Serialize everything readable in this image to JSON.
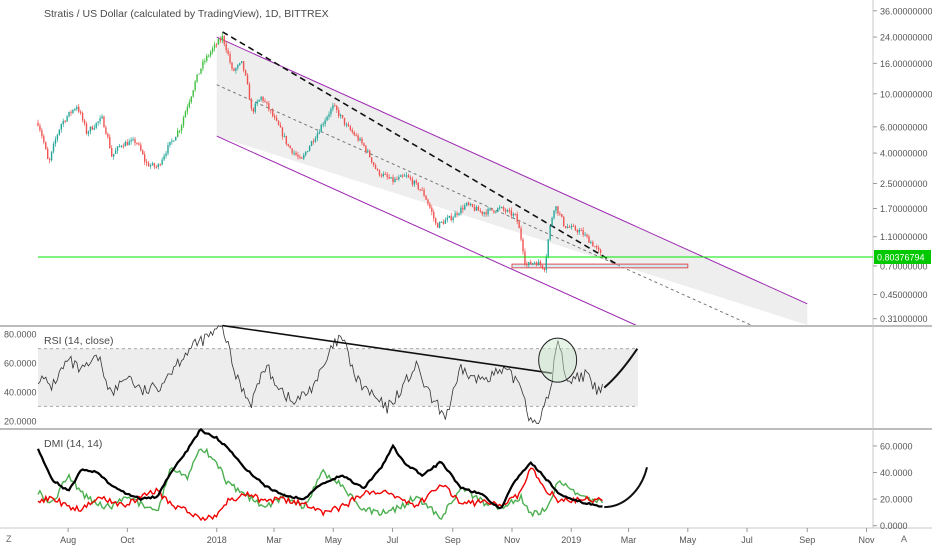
{
  "header": {
    "title": "Stratis / US Dollar (calculated by TradingView), 1D, BITTREX"
  },
  "colors": {
    "up": "#26a69a",
    "upBright": "#3fbf3f",
    "down": "#ef5350",
    "channel": "#9c27b0",
    "hline": "#00e600",
    "priceTag": "#00c800",
    "rsi": "#333333",
    "diPlus": "#4caf50",
    "diMinus": "#f00000",
    "adx": "#000000",
    "support": "#e05050",
    "band": "#e8e8e8",
    "circle": "#4caf50"
  },
  "time_axis": {
    "labels": [
      "Aug",
      "Oct",
      "2018",
      "Mar",
      "May",
      "Jul",
      "Sep",
      "Nov",
      "2019",
      "Mar",
      "May",
      "Jul",
      "Sep",
      "Nov"
    ]
  },
  "corners": {
    "bottom_left": "Z",
    "bottom_right": "A"
  },
  "chart_data": [
    {
      "type": "candlestick",
      "title": "Stratis / US Dollar (calculated by TradingView), 1D, BITTREX",
      "yscale": "log",
      "y_tick_labels": [
        "36.00000000",
        "24.00000000",
        "16.00000000",
        "10.00000000",
        "6.00000000",
        "4.00000000",
        "2.50000000",
        "1.70000000",
        "1.10000000",
        "0.70000000",
        "0.45000000",
        "0.31000000"
      ],
      "y_ticks": [
        36,
        24,
        16,
        10,
        6,
        4,
        2.5,
        1.7,
        1.1,
        0.7,
        0.45,
        0.31
      ],
      "ylim": [
        0.29,
        40
      ],
      "last_price": 0.80376794,
      "last_price_label": "0.80376794",
      "close_path": [
        [
          "2017-07-01",
          6.4
        ],
        [
          "2017-07-12",
          3.3
        ],
        [
          "2017-07-25",
          6.3
        ],
        [
          "2017-08-10",
          8.3
        ],
        [
          "2017-08-20",
          5.5
        ],
        [
          "2017-09-05",
          6.8
        ],
        [
          "2017-09-15",
          3.8
        ],
        [
          "2017-09-25",
          4.6
        ],
        [
          "2017-10-10",
          4.8
        ],
        [
          "2017-10-20",
          3.4
        ],
        [
          "2017-11-01",
          3.2
        ],
        [
          "2017-11-15",
          4.7
        ],
        [
          "2017-11-25",
          6.0
        ],
        [
          "2017-12-05",
          9.5
        ],
        [
          "2017-12-18",
          16.0
        ],
        [
          "2017-12-28",
          20.0
        ],
        [
          "2018-01-07",
          24.0
        ],
        [
          "2018-01-17",
          14.0
        ],
        [
          "2018-01-27",
          16.0
        ],
        [
          "2018-02-06",
          7.5
        ],
        [
          "2018-02-16",
          9.5
        ],
        [
          "2018-03-01",
          6.8
        ],
        [
          "2018-03-15",
          4.5
        ],
        [
          "2018-03-29",
          3.5
        ],
        [
          "2018-04-15",
          5.5
        ],
        [
          "2018-05-01",
          8.2
        ],
        [
          "2018-05-15",
          6.0
        ],
        [
          "2018-06-01",
          4.5
        ],
        [
          "2018-06-15",
          3.0
        ],
        [
          "2018-07-01",
          2.6
        ],
        [
          "2018-07-15",
          2.8
        ],
        [
          "2018-08-01",
          2.2
        ],
        [
          "2018-08-15",
          1.3
        ],
        [
          "2018-09-01",
          1.5
        ],
        [
          "2018-09-15",
          1.8
        ],
        [
          "2018-10-01",
          1.6
        ],
        [
          "2018-10-20",
          1.7
        ],
        [
          "2018-11-05",
          1.5
        ],
        [
          "2018-11-15",
          0.7
        ],
        [
          "2018-11-25",
          0.75
        ],
        [
          "2018-12-05",
          0.68
        ],
        [
          "2018-12-15",
          1.8
        ],
        [
          "2018-12-25",
          1.3
        ],
        [
          "2019-01-10",
          1.2
        ],
        [
          "2019-01-25",
          0.95
        ],
        [
          "2019-02-02",
          0.8
        ]
      ],
      "annotations": [
        {
          "kind": "descending-channel",
          "color": "purple"
        },
        {
          "kind": "dashed-trendline",
          "color": "black"
        },
        {
          "kind": "horizontal-line",
          "value": 0.80376794,
          "color": "green"
        },
        {
          "kind": "support-rectangle",
          "from": "2018-11-01",
          "to": "2019-05-01",
          "low": 0.68,
          "high": 0.72
        }
      ]
    },
    {
      "type": "line",
      "title": "RSI (14, close)",
      "y_tick_labels": [
        "80.0000",
        "60.0000",
        "40.0000",
        "20.0000"
      ],
      "y_ticks": [
        80,
        60,
        40,
        20
      ],
      "ylim": [
        15,
        85
      ],
      "band": [
        30,
        70
      ],
      "series": [
        {
          "name": "RSI",
          "points": [
            [
              "2017-07-01",
              50
            ],
            [
              "2017-07-15",
              44
            ],
            [
              "2017-08-01",
              62
            ],
            [
              "2017-08-15",
              54
            ],
            [
              "2017-09-01",
              64
            ],
            [
              "2017-09-15",
              38
            ],
            [
              "2017-10-01",
              52
            ],
            [
              "2017-10-15",
              40
            ],
            [
              "2017-11-01",
              43
            ],
            [
              "2017-11-15",
              55
            ],
            [
              "2017-12-01",
              68
            ],
            [
              "2017-12-15",
              75
            ],
            [
              "2018-01-01",
              82
            ],
            [
              "2018-01-07",
              86
            ],
            [
              "2018-01-20",
              52
            ],
            [
              "2018-02-05",
              32
            ],
            [
              "2018-02-20",
              58
            ],
            [
              "2018-03-05",
              45
            ],
            [
              "2018-03-20",
              32
            ],
            [
              "2018-04-05",
              40
            ],
            [
              "2018-04-20",
              55
            ],
            [
              "2018-05-01",
              72
            ],
            [
              "2018-05-10",
              78
            ],
            [
              "2018-05-25",
              48
            ],
            [
              "2018-06-10",
              38
            ],
            [
              "2018-06-25",
              28
            ],
            [
              "2018-07-10",
              42
            ],
            [
              "2018-07-25",
              58
            ],
            [
              "2018-08-10",
              35
            ],
            [
              "2018-08-25",
              23
            ],
            [
              "2018-09-10",
              56
            ],
            [
              "2018-09-25",
              48
            ],
            [
              "2018-10-10",
              52
            ],
            [
              "2018-10-25",
              54
            ],
            [
              "2018-11-10",
              46
            ],
            [
              "2018-11-20",
              20
            ],
            [
              "2018-12-01",
              22
            ],
            [
              "2018-12-10",
              40
            ],
            [
              "2018-12-18",
              76
            ],
            [
              "2018-12-28",
              48
            ],
            [
              "2019-01-15",
              52
            ],
            [
              "2019-01-28",
              40
            ],
            [
              "2019-02-04",
              44
            ]
          ]
        },
        {
          "name": "drawn-projection",
          "points": [
            [
              "2019-02-04",
              43
            ],
            [
              "2019-02-20",
              52
            ],
            [
              "2019-03-10",
              70
            ]
          ]
        }
      ],
      "annotations": [
        {
          "kind": "descending-trendline"
        },
        {
          "kind": "circle",
          "at": "2018-12-18"
        }
      ]
    },
    {
      "type": "line",
      "title": "DMI (14, 14)",
      "y_tick_labels": [
        "60.0000",
        "40.0000",
        "20.0000",
        "0.0000"
      ],
      "y_ticks": [
        60,
        40,
        20,
        0
      ],
      "ylim": [
        -1,
        72
      ],
      "series": [
        {
          "name": "ADX",
          "points": [
            [
              "2017-07-01",
              58
            ],
            [
              "2017-07-15",
              35
            ],
            [
              "2017-08-01",
              26
            ],
            [
              "2017-08-15",
              42
            ],
            [
              "2017-09-01",
              40
            ],
            [
              "2017-09-15",
              30
            ],
            [
              "2017-10-01",
              24
            ],
            [
              "2017-10-15",
              20
            ],
            [
              "2017-11-01",
              22
            ],
            [
              "2017-11-15",
              40
            ],
            [
              "2017-12-01",
              56
            ],
            [
              "2017-12-15",
              72
            ],
            [
              "2018-01-01",
              66
            ],
            [
              "2018-01-10",
              60
            ],
            [
              "2018-02-01",
              42
            ],
            [
              "2018-02-20",
              30
            ],
            [
              "2018-03-10",
              23
            ],
            [
              "2018-04-01",
              20
            ],
            [
              "2018-04-20",
              32
            ],
            [
              "2018-05-10",
              38
            ],
            [
              "2018-06-01",
              28
            ],
            [
              "2018-06-20",
              44
            ],
            [
              "2018-07-01",
              60
            ],
            [
              "2018-07-15",
              46
            ],
            [
              "2018-08-01",
              38
            ],
            [
              "2018-08-20",
              48
            ],
            [
              "2018-09-10",
              28
            ],
            [
              "2018-10-01",
              24
            ],
            [
              "2018-10-20",
              12
            ],
            [
              "2018-11-01",
              30
            ],
            [
              "2018-11-20",
              48
            ],
            [
              "2018-12-05",
              36
            ],
            [
              "2018-12-20",
              24
            ],
            [
              "2019-01-10",
              18
            ],
            [
              "2019-02-04",
              14
            ]
          ]
        },
        {
          "name": "+DI",
          "points": [
            [
              "2017-07-01",
              26
            ],
            [
              "2017-07-15",
              16
            ],
            [
              "2017-08-01",
              38
            ],
            [
              "2017-08-15",
              24
            ],
            [
              "2017-09-01",
              16
            ],
            [
              "2017-09-15",
              14
            ],
            [
              "2017-10-01",
              22
            ],
            [
              "2017-10-15",
              16
            ],
            [
              "2017-11-01",
              12
            ],
            [
              "2017-11-15",
              44
            ],
            [
              "2017-12-01",
              36
            ],
            [
              "2017-12-15",
              60
            ],
            [
              "2018-01-01",
              48
            ],
            [
              "2018-01-10",
              34
            ],
            [
              "2018-02-01",
              22
            ],
            [
              "2018-02-20",
              14
            ],
            [
              "2018-03-10",
              22
            ],
            [
              "2018-04-01",
              14
            ],
            [
              "2018-04-20",
              40
            ],
            [
              "2018-05-10",
              30
            ],
            [
              "2018-06-01",
              12
            ],
            [
              "2018-06-20",
              10
            ],
            [
              "2018-07-10",
              14
            ],
            [
              "2018-07-25",
              22
            ],
            [
              "2018-08-20",
              6
            ],
            [
              "2018-09-10",
              28
            ],
            [
              "2018-10-01",
              18
            ],
            [
              "2018-10-20",
              14
            ],
            [
              "2018-11-10",
              22
            ],
            [
              "2018-11-20",
              8
            ],
            [
              "2018-12-05",
              12
            ],
            [
              "2018-12-20",
              34
            ],
            [
              "2019-01-10",
              22
            ],
            [
              "2019-02-04",
              17
            ]
          ]
        },
        {
          "name": "-DI",
          "points": [
            [
              "2017-07-01",
              16
            ],
            [
              "2017-07-15",
              22
            ],
            [
              "2017-08-01",
              14
            ],
            [
              "2017-08-15",
              12
            ],
            [
              "2017-09-01",
              22
            ],
            [
              "2017-09-15",
              18
            ],
            [
              "2017-10-01",
              16
            ],
            [
              "2017-10-15",
              22
            ],
            [
              "2017-11-01",
              26
            ],
            [
              "2017-11-15",
              16
            ],
            [
              "2017-12-01",
              12
            ],
            [
              "2017-12-15",
              4
            ],
            [
              "2018-01-01",
              8
            ],
            [
              "2018-01-10",
              18
            ],
            [
              "2018-02-01",
              24
            ],
            [
              "2018-02-20",
              18
            ],
            [
              "2018-03-10",
              20
            ],
            [
              "2018-04-01",
              16
            ],
            [
              "2018-04-20",
              10
            ],
            [
              "2018-05-10",
              14
            ],
            [
              "2018-06-01",
              24
            ],
            [
              "2018-06-20",
              26
            ],
            [
              "2018-07-10",
              20
            ],
            [
              "2018-07-25",
              14
            ],
            [
              "2018-08-20",
              32
            ],
            [
              "2018-09-10",
              16
            ],
            [
              "2018-10-01",
              18
            ],
            [
              "2018-10-20",
              16
            ],
            [
              "2018-11-10",
              24
            ],
            [
              "2018-11-20",
              44
            ],
            [
              "2018-12-05",
              28
            ],
            [
              "2018-12-20",
              18
            ],
            [
              "2019-01-10",
              20
            ],
            [
              "2019-02-04",
              19
            ]
          ]
        },
        {
          "name": "drawn-projection",
          "points": [
            [
              "2019-02-04",
              14
            ],
            [
              "2019-02-24",
              14
            ],
            [
              "2019-03-14",
              26
            ],
            [
              "2019-03-20",
              44
            ]
          ]
        }
      ]
    }
  ]
}
